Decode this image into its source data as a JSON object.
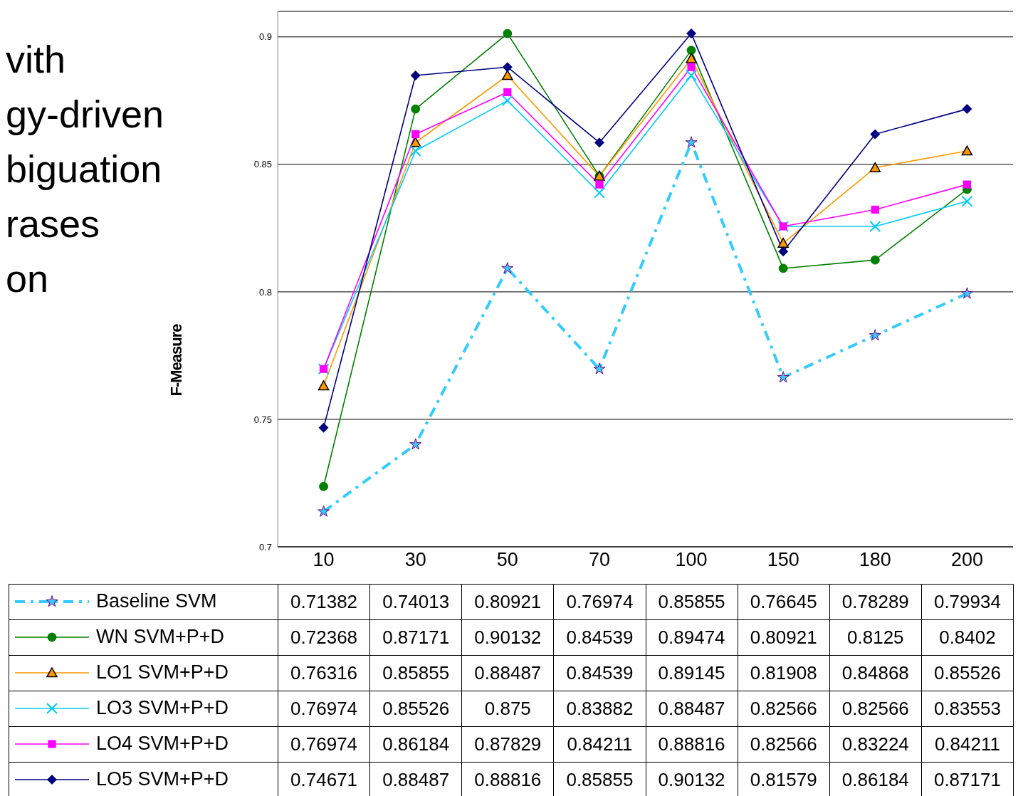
{
  "chart_data": {
    "type": "line",
    "ylabel": "F-Measure",
    "annotations": [
      "vith",
      "gy-driven",
      "biguation",
      "rases",
      "on"
    ],
    "categories": [
      "10",
      "30",
      "50",
      "70",
      "100",
      "150",
      "180",
      "200"
    ],
    "ylim": [
      0.7,
      0.91
    ],
    "yticks": [
      0.7,
      0.75,
      0.8,
      0.85,
      0.9
    ],
    "grid": "y",
    "legend": "bottom",
    "data_labels": true,
    "series": [
      {
        "name": "Baseline SVM",
        "color": "#33ccff",
        "marker": "star",
        "line_style": "dashed",
        "values": [
          0.71382,
          0.74013,
          0.80921,
          0.76974,
          0.85855,
          0.76645,
          0.78289,
          0.79934
        ]
      },
      {
        "name": "WN SVM+P+D",
        "color": "#008000",
        "marker": "circle",
        "line_style": "solid",
        "values": [
          0.72368,
          0.87171,
          0.90132,
          0.84539,
          0.89474,
          0.80921,
          0.8125,
          0.8402
        ]
      },
      {
        "name": "LO1 SVM+P+D",
        "color": "#ff9900",
        "marker": "triangle",
        "line_style": "solid",
        "values": [
          0.76316,
          0.85855,
          0.88487,
          0.84539,
          0.89145,
          0.81908,
          0.84868,
          0.85526
        ]
      },
      {
        "name": "LO3 SVM+P+D",
        "color": "#00ccff",
        "marker": "cross",
        "line_style": "solid",
        "values": [
          0.76974,
          0.85526,
          0.875,
          0.83882,
          0.88487,
          0.82566,
          0.82566,
          0.83553
        ]
      },
      {
        "name": "LO4 SVM+P+D",
        "color": "#ff00ff",
        "marker": "square",
        "line_style": "solid",
        "values": [
          0.76974,
          0.86184,
          0.87829,
          0.84211,
          0.88816,
          0.82566,
          0.83224,
          0.84211
        ]
      },
      {
        "name": "LO5 SVM+P+D",
        "color": "#000080",
        "marker": "diamond",
        "line_style": "solid",
        "values": [
          0.74671,
          0.88487,
          0.88816,
          0.85855,
          0.90132,
          0.81579,
          0.86184,
          0.87171
        ]
      }
    ]
  }
}
